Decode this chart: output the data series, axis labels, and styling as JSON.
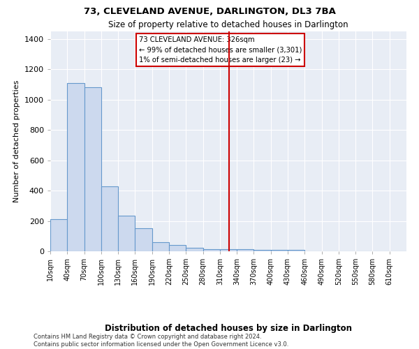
{
  "title": "73, CLEVELAND AVENUE, DARLINGTON, DL3 7BA",
  "subtitle": "Size of property relative to detached houses in Darlington",
  "xlabel": "Distribution of detached houses by size in Darlington",
  "ylabel": "Number of detached properties",
  "footer_line1": "Contains HM Land Registry data © Crown copyright and database right 2024.",
  "footer_line2": "Contains public sector information licensed under the Open Government Licence v3.0.",
  "annotation_line1": "73 CLEVELAND AVENUE: 326sqm",
  "annotation_line2": "← 99% of detached houses are smaller (3,301)",
  "annotation_line3": "1% of semi-detached houses are larger (23) →",
  "property_line_x": 326,
  "heights": [
    210,
    1110,
    1080,
    430,
    235,
    150,
    60,
    40,
    25,
    15,
    15,
    15,
    10,
    10,
    10,
    0,
    0,
    0,
    0,
    0,
    0
  ],
  "tick_labels": [
    "10sqm",
    "40sqm",
    "70sqm",
    "100sqm",
    "130sqm",
    "160sqm",
    "190sqm",
    "220sqm",
    "250sqm",
    "280sqm",
    "310sqm",
    "340sqm",
    "370sqm",
    "400sqm",
    "430sqm",
    "460sqm",
    "490sqm",
    "520sqm",
    "550sqm",
    "580sqm",
    "610sqm"
  ],
  "bar_face_color": "#ccd9ee",
  "bar_edge_color": "#6699cc",
  "fig_bg_color": "#ffffff",
  "ax_bg_color": "#e8edf5",
  "grid_color": "#ffffff",
  "vline_color": "#cc0000",
  "annotation_box_color": "#cc0000",
  "ylim": [
    0,
    1450
  ],
  "yticks": [
    0,
    200,
    400,
    600,
    800,
    1000,
    1200,
    1400
  ]
}
